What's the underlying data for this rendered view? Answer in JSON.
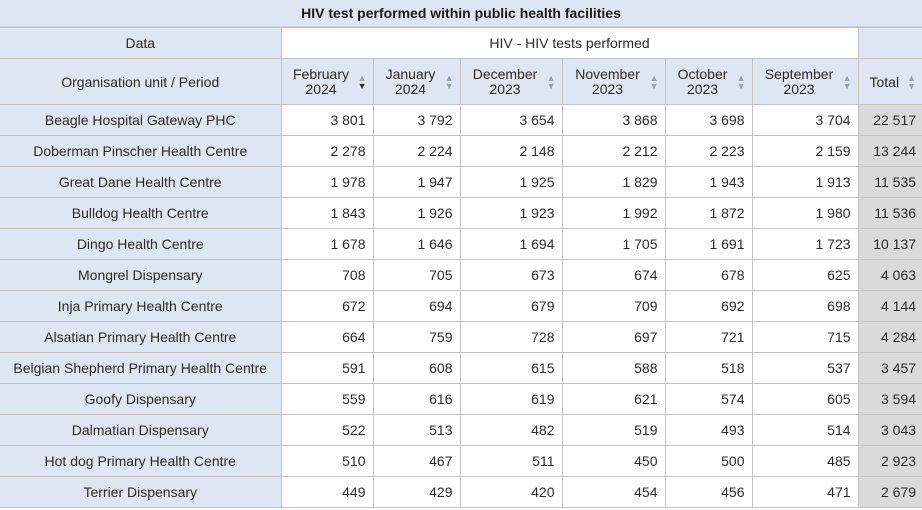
{
  "title": "HIV test performed within public health facilities",
  "header": {
    "data_label": "Data",
    "data_element": "HIV - HIV tests performed",
    "row_dim_label": "Organisation unit / Period",
    "periods": [
      {
        "line1": "February",
        "line2": "2024",
        "sort": "descending"
      },
      {
        "line1": "January",
        "line2": "2024",
        "sort": "none"
      },
      {
        "line1": "December",
        "line2": "2023",
        "sort": "none"
      },
      {
        "line1": "November",
        "line2": "2023",
        "sort": "none"
      },
      {
        "line1": "October",
        "line2": "2023",
        "sort": "none"
      },
      {
        "line1": "September",
        "line2": "2023",
        "sort": "none"
      }
    ],
    "total_label": "Total",
    "up_icon": "▲",
    "down_icon": "▼"
  },
  "rows": [
    {
      "ou": "Beagle Hospital Gateway PHC",
      "values": [
        "3 801",
        "3 792",
        "3 654",
        "3 868",
        "3 698",
        "3 704"
      ],
      "total": "22 517"
    },
    {
      "ou": "Doberman Pinscher Health Centre",
      "values": [
        "2 278",
        "2 224",
        "2 148",
        "2 212",
        "2 223",
        "2 159"
      ],
      "total": "13 244"
    },
    {
      "ou": "Great Dane Health Centre",
      "values": [
        "1 978",
        "1 947",
        "1 925",
        "1 829",
        "1 943",
        "1 913"
      ],
      "total": "11 535"
    },
    {
      "ou": "Bulldog Health Centre",
      "values": [
        "1 843",
        "1 926",
        "1 923",
        "1 992",
        "1 872",
        "1 980"
      ],
      "total": "11 536"
    },
    {
      "ou": "Dingo Health Centre",
      "values": [
        "1 678",
        "1 646",
        "1 694",
        "1 705",
        "1 691",
        "1 723"
      ],
      "total": "10 137"
    },
    {
      "ou": "Mongrel Dispensary",
      "values": [
        "708",
        "705",
        "673",
        "674",
        "678",
        "625"
      ],
      "total": "4 063"
    },
    {
      "ou": "Inja Primary Health Centre",
      "values": [
        "672",
        "694",
        "679",
        "709",
        "692",
        "698"
      ],
      "total": "4 144"
    },
    {
      "ou": "Alsatian Primary Health Centre",
      "values": [
        "664",
        "759",
        "728",
        "697",
        "721",
        "715"
      ],
      "total": "4 284"
    },
    {
      "ou": "Belgian Shepherd Primary Health Centre",
      "values": [
        "591",
        "608",
        "615",
        "588",
        "518",
        "537"
      ],
      "total": "3 457"
    },
    {
      "ou": "Goofy Dispensary",
      "values": [
        "559",
        "616",
        "619",
        "621",
        "574",
        "605"
      ],
      "total": "3 594"
    },
    {
      "ou": "Dalmatian Dispensary",
      "values": [
        "522",
        "513",
        "482",
        "519",
        "493",
        "514"
      ],
      "total": "3 043"
    },
    {
      "ou": "Hot dog Primary Health Centre",
      "values": [
        "510",
        "467",
        "511",
        "450",
        "500",
        "485"
      ],
      "total": "2 923"
    },
    {
      "ou": "Terrier Dispensary",
      "values": [
        "449",
        "429",
        "420",
        "454",
        "456",
        "471"
      ],
      "total": "2 679"
    }
  ]
}
